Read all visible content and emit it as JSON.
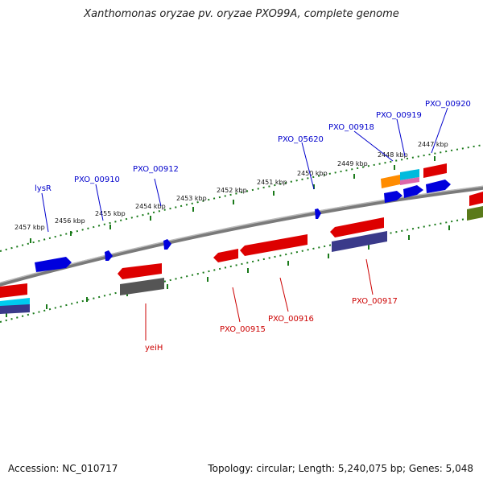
{
  "title": "Xanthomonas oryzae pv. oryzae PXO99A, complete genome",
  "accession": "Accession: NC_010717",
  "topology": "Topology: circular; Length: 5,240,075 bp; Genes: 5,048",
  "colors": {
    "backbone": "#888888",
    "ticks": "#1a7a1a",
    "forward_gene": "#0000ee",
    "reverse_gene": "#ee0000",
    "label_forward": "#0000cc",
    "label_reverse": "#cc0000"
  },
  "ticks_kbp": [
    "2447 kbp",
    "2448 kbp",
    "2449 kbp",
    "2450 kbp",
    "2451 kbp",
    "2452 kbp",
    "2453 kbp",
    "2454 kbp",
    "2455 kbp",
    "2456 kbp",
    "2457 kbp"
  ],
  "forward_labels": [
    "PXO_00920",
    "PXO_00919",
    "PXO_00918",
    "PXO_05620",
    "PXO_00912",
    "PXO_00910",
    "lysR"
  ],
  "reverse_labels": [
    "PXO_00917",
    "PXO_00916",
    "PXO_00915",
    "yeiH"
  ]
}
